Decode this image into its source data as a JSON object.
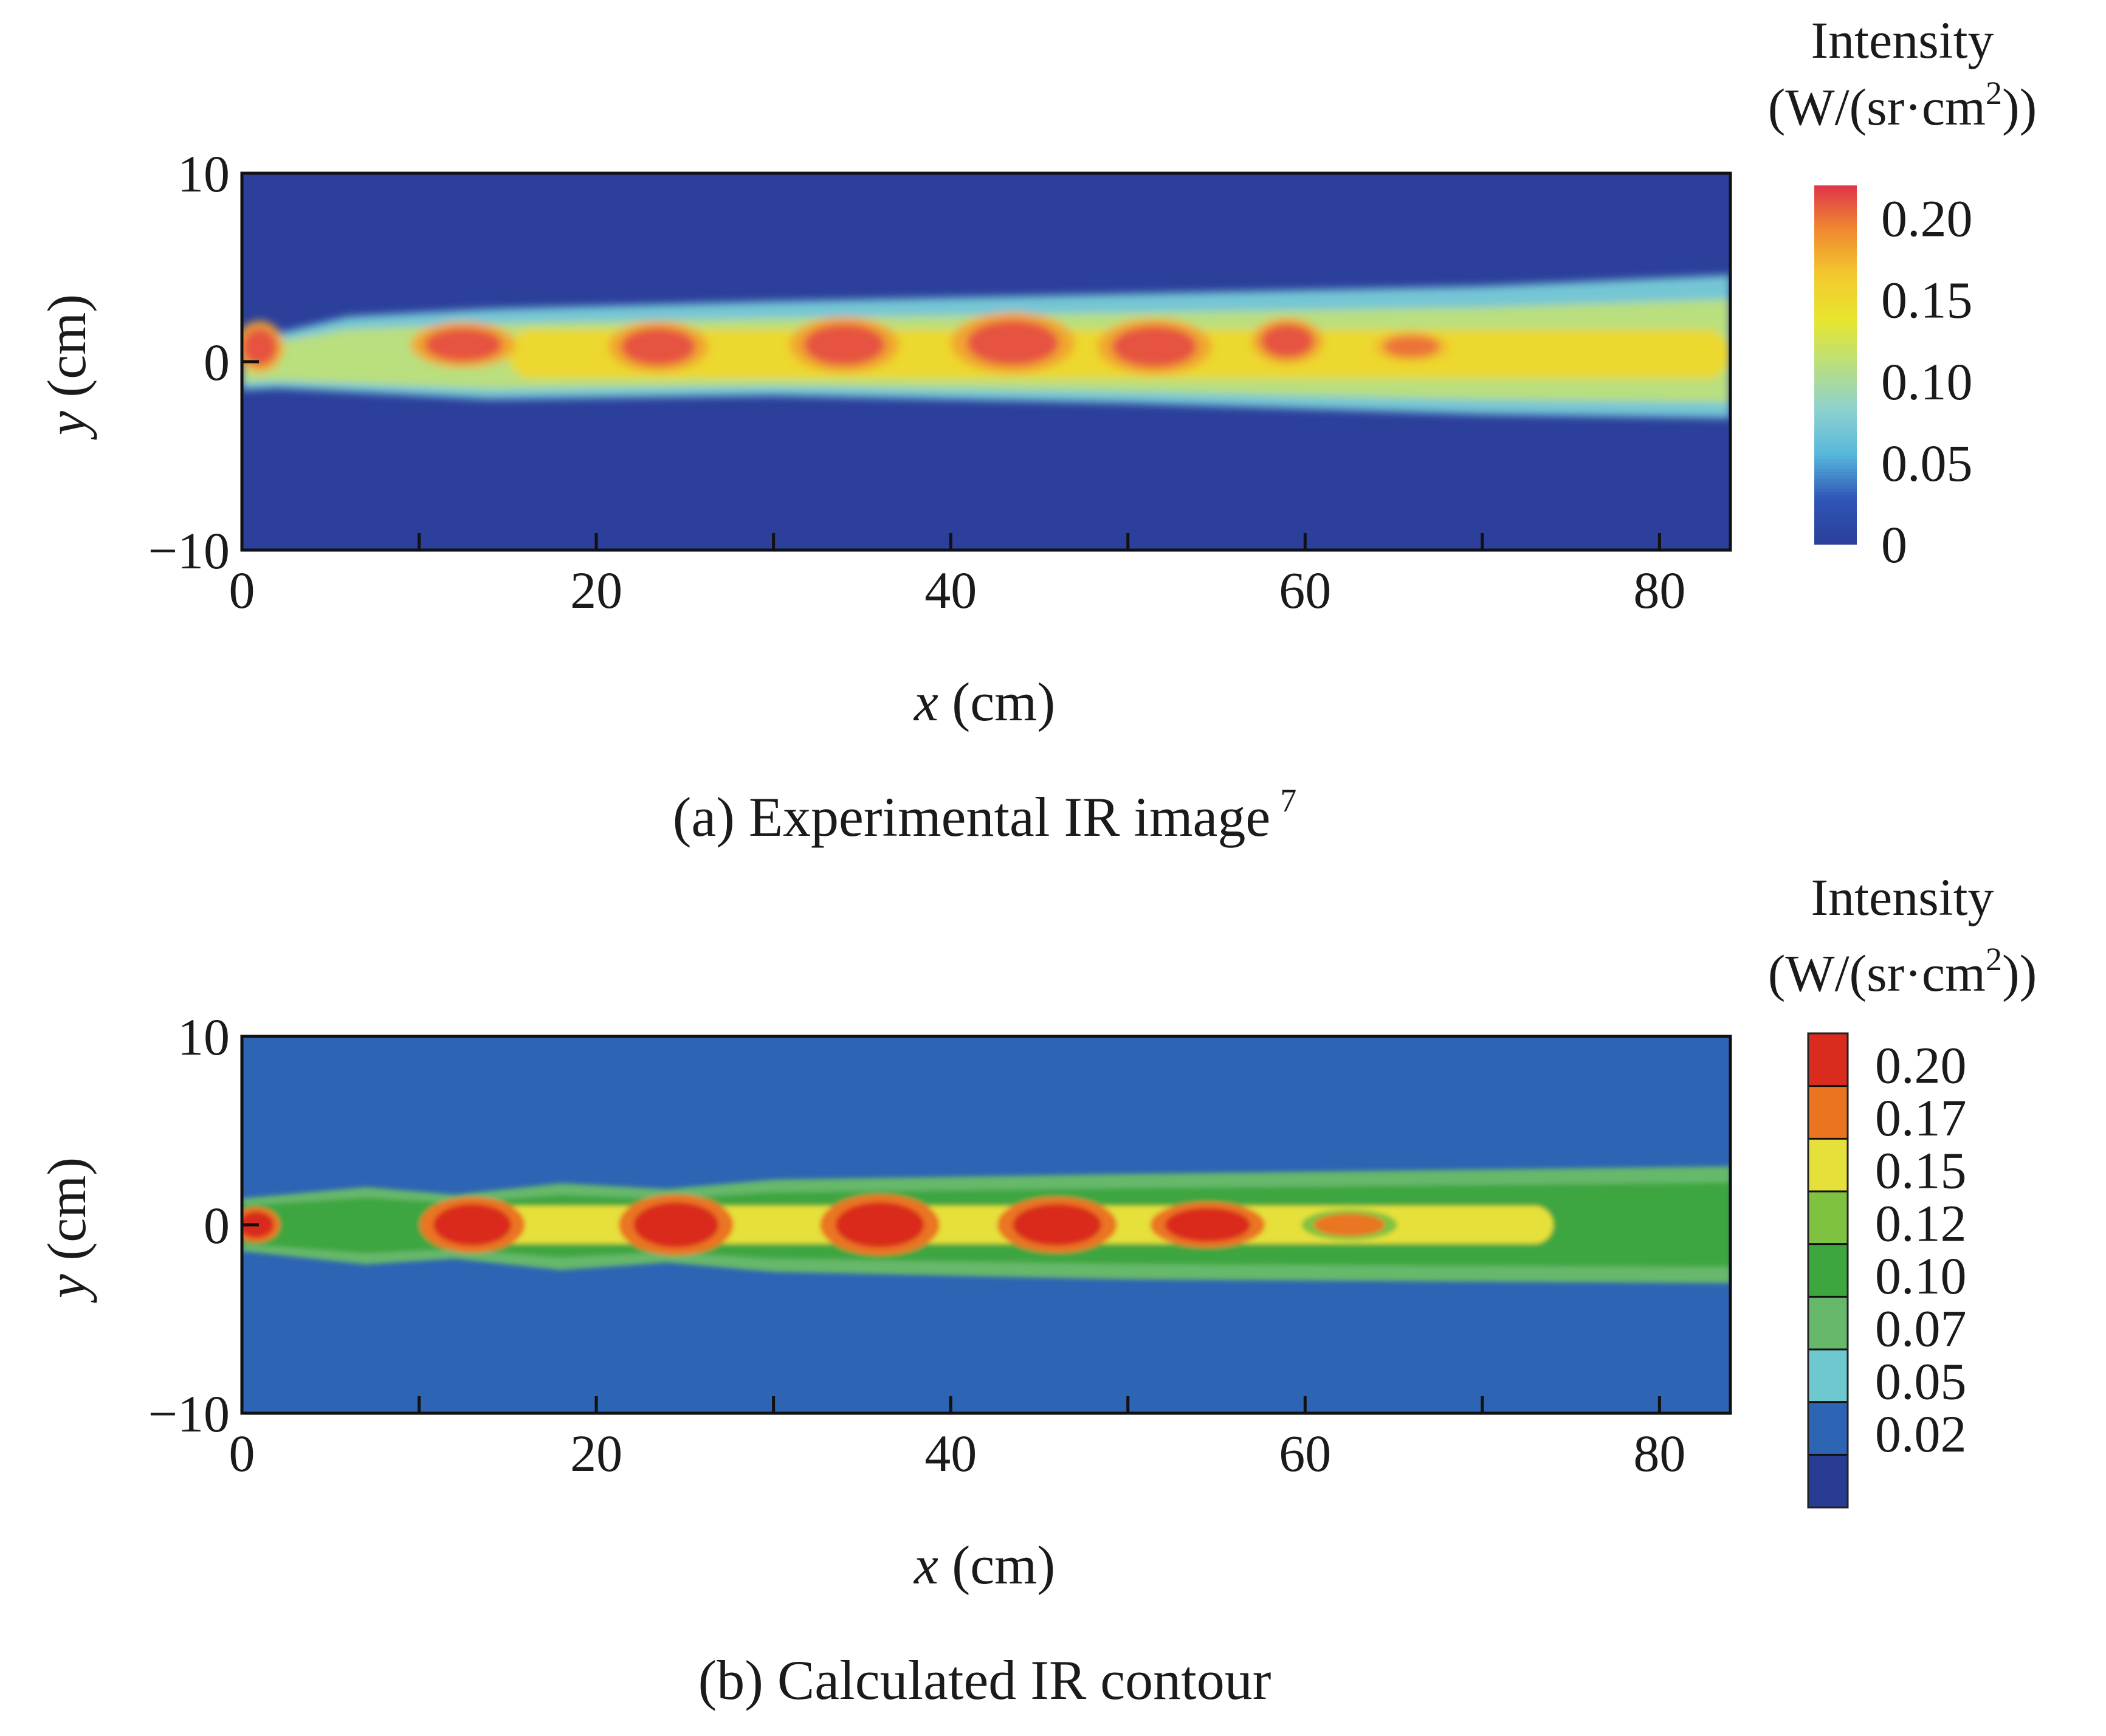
{
  "chart_data": [
    {
      "type": "heatmap",
      "panel": "a",
      "caption": "(a) Experimental IR image",
      "caption_sup": "7",
      "xlabel_var": "x",
      "xlabel_unit": " (cm)",
      "ylabel_var": "y",
      "ylabel_unit": " (cm)",
      "xlim": [
        0,
        84
      ],
      "ylim": [
        -10,
        10
      ],
      "xticks": [
        0,
        20,
        40,
        60,
        80
      ],
      "xticks_minor": [
        10,
        30,
        50,
        70
      ],
      "yticks": [
        -10,
        0,
        10
      ],
      "colorbar": {
        "title_line1": "Intensity",
        "title_line2_pre": "(W/(sr·cm",
        "title_line2_sup": "2",
        "title_line2_post": "))",
        "type": "continuous",
        "range": [
          0,
          0.22
        ],
        "ticks": [
          0.2,
          0.15,
          0.1,
          0.05,
          0
        ],
        "tick_labels": [
          "0.20",
          "0.15",
          "0.10",
          "0.05",
          "0"
        ],
        "colors": [
          "#2b3f9b",
          "#2f55b6",
          "#57b8dc",
          "#8ed1cf",
          "#b9df7e",
          "#e7e52d",
          "#f3c92e",
          "#f08a30",
          "#e0344a"
        ]
      },
      "background_value": 0.0,
      "plume_envelope": [
        [
          0,
          1.8
        ],
        [
          2,
          1.5
        ],
        [
          6,
          2.4
        ],
        [
          14,
          2.8
        ],
        [
          30,
          3.2
        ],
        [
          50,
          3.6
        ],
        [
          70,
          4.0
        ],
        [
          84,
          4.6
        ]
      ],
      "plume_envelope_lower": [
        [
          0,
          -1.5
        ],
        [
          2,
          -1.4
        ],
        [
          6,
          -1.6
        ],
        [
          14,
          -2.0
        ],
        [
          30,
          -1.8
        ],
        [
          50,
          -2.2
        ],
        [
          70,
          -2.8
        ],
        [
          84,
          -3.0
        ]
      ],
      "core_band": {
        "x_start": 15,
        "x_end": 84,
        "y_half": 1.3,
        "value": 0.15
      },
      "hot_spots": [
        {
          "x": 1.0,
          "y": 0.8,
          "rx": 1.0,
          "ry": 1.0,
          "value": 0.21
        },
        {
          "x": 12.5,
          "y": 0.9,
          "rx": 2.2,
          "ry": 0.9,
          "value": 0.21
        },
        {
          "x": 23.5,
          "y": 0.8,
          "rx": 2.1,
          "ry": 1.0,
          "value": 0.21
        },
        {
          "x": 34.0,
          "y": 0.9,
          "rx": 2.3,
          "ry": 1.1,
          "value": 0.21
        },
        {
          "x": 43.5,
          "y": 1.0,
          "rx": 2.6,
          "ry": 1.2,
          "value": 0.21
        },
        {
          "x": 51.5,
          "y": 0.8,
          "rx": 2.4,
          "ry": 1.1,
          "value": 0.21
        },
        {
          "x": 59.0,
          "y": 1.1,
          "rx": 1.5,
          "ry": 0.9,
          "value": 0.21
        },
        {
          "x": 66.0,
          "y": 0.8,
          "rx": 1.6,
          "ry": 0.6,
          "value": 0.2
        }
      ]
    },
    {
      "type": "heatmap",
      "panel": "b",
      "caption": "(b) Calculated IR contour",
      "caption_sup": "",
      "xlabel_var": "x",
      "xlabel_unit": " (cm)",
      "ylabel_var": "y",
      "ylabel_unit": " (cm)",
      "xlim": [
        0,
        84
      ],
      "ylim": [
        -10,
        10
      ],
      "xticks": [
        0,
        20,
        40,
        60,
        80
      ],
      "xticks_minor": [
        10,
        30,
        50,
        70
      ],
      "yticks": [
        -10,
        0,
        10
      ],
      "colorbar": {
        "title_line1": "Intensity",
        "title_line2_pre": "(W/(sr·cm",
        "title_line2_sup": "2",
        "title_line2_post": "))",
        "type": "discrete",
        "levels": [
          0.2,
          0.17,
          0.15,
          0.12,
          0.1,
          0.07,
          0.05,
          0.02
        ],
        "tick_labels": [
          "0.20",
          "0.17",
          "0.15",
          "0.12",
          "0.10",
          "0.07",
          "0.05",
          "0.02"
        ],
        "colors": [
          "#d92b1e",
          "#ea7420",
          "#e6e03a",
          "#7fc241",
          "#3da63f",
          "#66b86b",
          "#6ec8cf",
          "#2e64b4",
          "#283c94"
        ]
      },
      "background_value": 0.02,
      "plume_envelope": [
        [
          0,
          1.4
        ],
        [
          7,
          2.0
        ],
        [
          12,
          1.6
        ],
        [
          18,
          2.2
        ],
        [
          24,
          1.9
        ],
        [
          30,
          2.4
        ],
        [
          50,
          2.7
        ],
        [
          84,
          3.1
        ]
      ],
      "plume_envelope_lower": [
        [
          0,
          -1.4
        ],
        [
          7,
          -2.1
        ],
        [
          12,
          -1.8
        ],
        [
          18,
          -2.4
        ],
        [
          24,
          -2.0
        ],
        [
          30,
          -2.5
        ],
        [
          50,
          -2.9
        ],
        [
          84,
          -3.1
        ]
      ],
      "core_band": {
        "x_start": 14,
        "x_end": 74,
        "y_half": 1.0,
        "value": 0.15
      },
      "hot_spots": [
        {
          "x": 0.8,
          "y": 0.0,
          "rx": 1.0,
          "ry": 0.7,
          "value": 0.2
        },
        {
          "x": 13.0,
          "y": 0.0,
          "rx": 2.2,
          "ry": 1.1,
          "value": 0.2
        },
        {
          "x": 24.5,
          "y": 0.0,
          "rx": 2.4,
          "ry": 1.2,
          "value": 0.2
        },
        {
          "x": 36.0,
          "y": 0.0,
          "rx": 2.5,
          "ry": 1.2,
          "value": 0.2
        },
        {
          "x": 46.0,
          "y": 0.0,
          "rx": 2.5,
          "ry": 1.1,
          "value": 0.2
        },
        {
          "x": 54.5,
          "y": 0.0,
          "rx": 2.4,
          "ry": 0.9,
          "value": 0.2
        },
        {
          "x": 62.5,
          "y": 0.0,
          "rx": 2.0,
          "ry": 0.6,
          "value": 0.17
        }
      ]
    }
  ]
}
